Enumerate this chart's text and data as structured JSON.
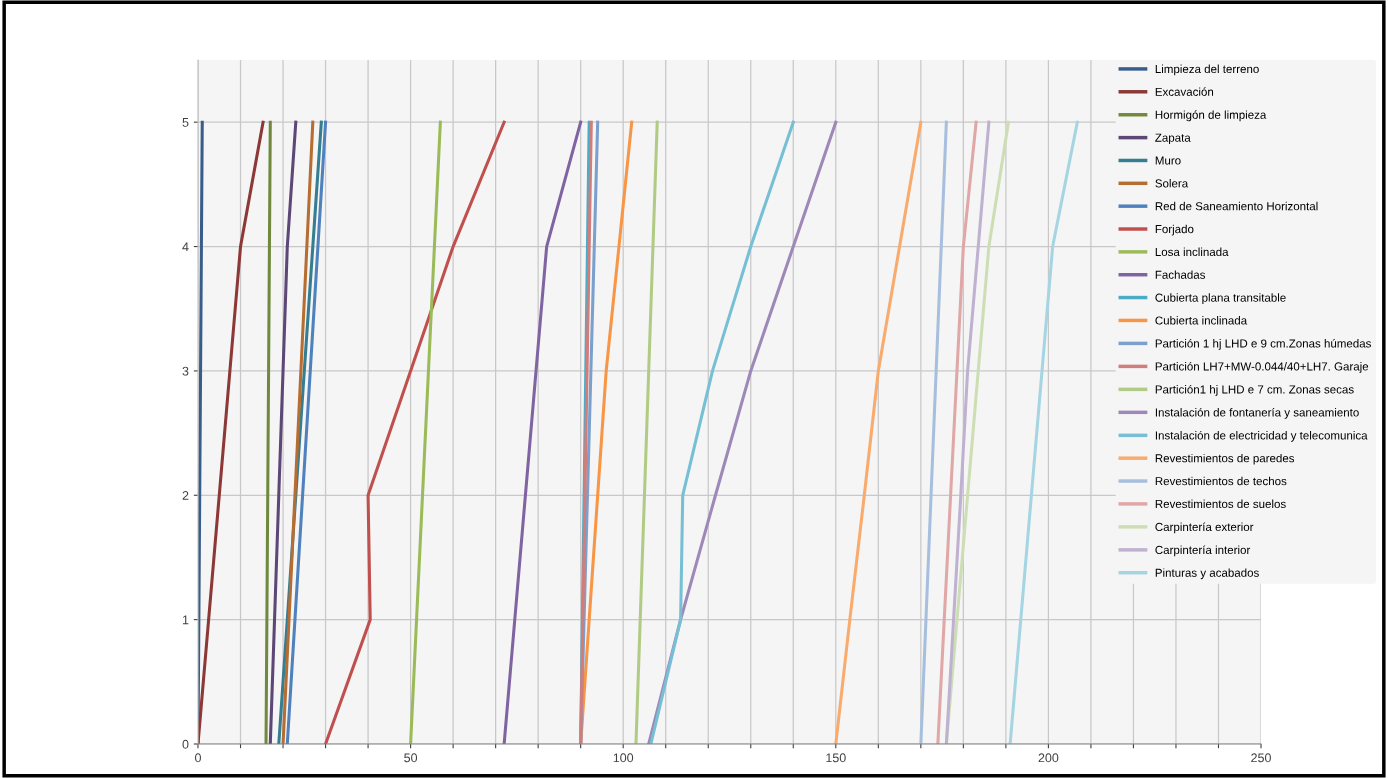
{
  "chart_data": {
    "type": "line",
    "xlim": [
      0,
      250
    ],
    "ylim": [
      0,
      5.5
    ],
    "xticks": [
      0,
      {
        "value": 10,
        "label": null
      },
      {
        "value": 20,
        "label": null
      },
      {
        "value": 30,
        "label": null
      },
      {
        "value": 40,
        "label": null
      },
      50,
      {
        "value": 60,
        "label": null
      },
      {
        "value": 70,
        "label": null
      },
      {
        "value": 80,
        "label": null
      },
      {
        "value": 90,
        "label": null
      },
      100,
      {
        "value": 110,
        "label": null
      },
      {
        "value": 120,
        "label": null
      },
      {
        "value": 130,
        "label": null
      },
      {
        "value": 140,
        "label": null
      },
      150,
      {
        "value": 160,
        "label": null
      },
      {
        "value": 170,
        "label": null
      },
      {
        "value": 180,
        "label": null
      },
      {
        "value": 190,
        "label": null
      },
      200,
      {
        "value": 210,
        "label": null
      },
      {
        "value": 220,
        "label": null
      },
      {
        "value": 230,
        "label": null
      },
      {
        "value": 240,
        "label": null
      },
      250
    ],
    "yticks": [
      0,
      1,
      2,
      3,
      4,
      5
    ],
    "grid": true,
    "legend": "right",
    "marker": "none",
    "line_style": "solid",
    "series": [
      {
        "name": "Limpieza del terreno",
        "color": "#385d8a",
        "x": [
          0,
          0.2,
          0.4,
          0.6,
          0.8,
          1
        ],
        "values": [
          0,
          1,
          2,
          3,
          4,
          5
        ]
      },
      {
        "name": "Excavación",
        "color": "#8c3836",
        "x": [
          0,
          2.5,
          5,
          7.5,
          10,
          15.3
        ],
        "values": [
          0,
          1,
          2,
          3,
          4,
          5
        ]
      },
      {
        "name": "Hormigón de limpieza",
        "color": "#71893f",
        "x": [
          16,
          16.2,
          16.4,
          16.6,
          16.8,
          17
        ],
        "values": [
          0,
          1,
          2,
          3,
          4,
          5
        ]
      },
      {
        "name": "Zapata",
        "color": "#5c4776",
        "x": [
          17,
          18,
          19,
          20,
          21,
          23
        ],
        "values": [
          0,
          1,
          2,
          3,
          4,
          5
        ]
      },
      {
        "name": "Muro",
        "color": "#357d91",
        "x": [
          19,
          21,
          23,
          25,
          27,
          29
        ],
        "values": [
          0,
          1,
          2,
          3,
          4,
          5
        ]
      },
      {
        "name": "Solera",
        "color": "#b66d31",
        "x": [
          20,
          21.4,
          22.8,
          24.2,
          25.6,
          27
        ],
        "values": [
          0,
          1,
          2,
          3,
          4,
          5
        ]
      },
      {
        "name": "Red de Saneamiento Horizontal",
        "color": "#4f81bd",
        "x": [
          21,
          22.8,
          24.6,
          26.4,
          28.2,
          30
        ],
        "values": [
          0,
          1,
          2,
          3,
          4,
          5
        ]
      },
      {
        "name": "Forjado",
        "color": "#c0504d",
        "x": [
          30,
          40.5,
          40,
          50,
          60,
          72
        ],
        "values": [
          0,
          1,
          2,
          3,
          4,
          5
        ]
      },
      {
        "name": "Losa inclinada",
        "color": "#9bbb59",
        "x": [
          50,
          51.4,
          52.8,
          54.2,
          55.6,
          57
        ],
        "values": [
          0,
          1,
          2,
          3,
          4,
          5
        ]
      },
      {
        "name": "Fachadas",
        "color": "#8064a2",
        "x": [
          72,
          74.5,
          77,
          79.5,
          82,
          90
        ],
        "values": [
          0,
          1,
          2,
          3,
          4,
          5
        ]
      },
      {
        "name": "Cubierta plana transitable",
        "color": "#4bacc6",
        "x": [
          90,
          90.4,
          90.8,
          91.2,
          91.6,
          92
        ],
        "values": [
          0,
          1,
          2,
          3,
          4,
          5
        ]
      },
      {
        "name": "Cubierta inclinada",
        "color": "#f79646",
        "x": [
          90,
          92,
          94,
          96,
          99,
          102
        ],
        "values": [
          0,
          1,
          2,
          3,
          4,
          5
        ]
      },
      {
        "name": "Partición 1 hj LHD e 9 cm.Zonas húmedas",
        "color": "#7ba0cd",
        "x": [
          90,
          90.8,
          91.6,
          92.4,
          93.2,
          94
        ],
        "values": [
          0,
          1,
          2,
          3,
          4,
          5
        ]
      },
      {
        "name": "Partición LH7+MW-0.044/40+LH7. Garaje",
        "color": "#d07e7c",
        "x": [
          90,
          90.5,
          91,
          91.5,
          92,
          92.5
        ],
        "values": [
          0,
          1,
          2,
          3,
          4,
          5
        ]
      },
      {
        "name": "Partición1 hj LHD e 7 cm. Zonas secas",
        "color": "#b1cb85",
        "x": [
          103,
          104,
          105,
          106,
          107,
          108
        ],
        "values": [
          0,
          1,
          2,
          3,
          4,
          5
        ]
      },
      {
        "name": "Instalación de fontanería y saneamiento",
        "color": "#9d88b8",
        "x": [
          106,
          113.5,
          121.7,
          130,
          140,
          150
        ],
        "values": [
          0,
          1,
          2,
          3,
          4,
          5
        ]
      },
      {
        "name": "Instalación de electricidad y telecomunica",
        "color": "#76bfd4",
        "x": [
          106.5,
          113.5,
          114,
          121,
          130,
          140
        ],
        "values": [
          0,
          1,
          2,
          3,
          4,
          5
        ]
      },
      {
        "name": "Revestimientos de paredes",
        "color": "#f9ab6e",
        "x": [
          150,
          153.3,
          156.7,
          160,
          165,
          170
        ],
        "values": [
          0,
          1,
          2,
          3,
          4,
          5
        ]
      },
      {
        "name": "Revestimientos de techos",
        "color": "#a7bfde",
        "x": [
          170,
          171.2,
          172.4,
          173.6,
          174.8,
          176
        ],
        "values": [
          0,
          1,
          2,
          3,
          4,
          5
        ]
      },
      {
        "name": "Revestimientos de suelos",
        "color": "#dfa7a6",
        "x": [
          174,
          175.5,
          177,
          178.5,
          180,
          183
        ],
        "values": [
          0,
          1,
          2,
          3,
          4,
          5
        ]
      },
      {
        "name": "Carpintería exterior",
        "color": "#cddeb5",
        "x": [
          176,
          178.5,
          181,
          183.5,
          186,
          190.6
        ],
        "values": [
          0,
          1,
          2,
          3,
          4,
          5
        ]
      },
      {
        "name": "Carpintería interior",
        "color": "#bfb1d0",
        "x": [
          176,
          177.7,
          179.4,
          181,
          183.5,
          186
        ],
        "values": [
          0,
          1,
          2,
          3,
          4,
          5
        ]
      },
      {
        "name": "Pinturas y acabados",
        "color": "#a5d5e2",
        "x": [
          191,
          193.5,
          196,
          198.5,
          201,
          206.8
        ],
        "values": [
          0,
          1,
          2,
          3,
          4,
          5
        ]
      }
    ]
  }
}
